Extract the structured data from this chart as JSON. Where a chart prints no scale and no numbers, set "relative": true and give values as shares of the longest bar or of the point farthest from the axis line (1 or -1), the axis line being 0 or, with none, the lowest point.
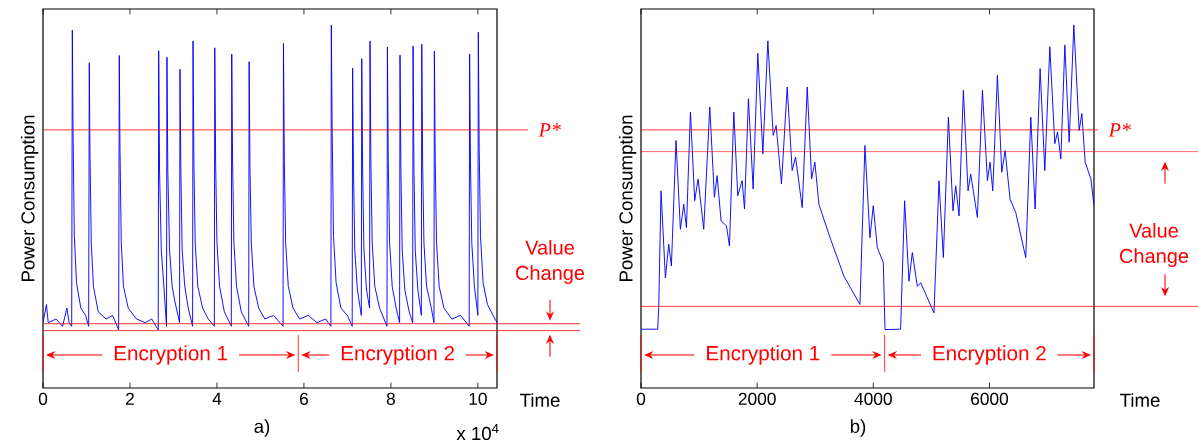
{
  "chart_data": [
    {
      "type": "line",
      "relative": true,
      "xlabel": "Time",
      "ylabel": "Power Consumption",
      "xlim": [
        0,
        10.44
      ],
      "xticks": [
        0,
        2,
        4,
        6,
        8,
        10
      ],
      "tick_labels": "x",
      "series": [
        {
          "color": "#0000ff",
          "x": [
            0,
            0.08,
            0.12,
            0.3,
            0.45,
            0.55,
            0.6,
            0.66,
            0.674,
            0.69,
            0.72,
            0.77,
            0.87,
            0.98,
            1.05,
            1.064,
            1.08,
            1.11,
            1.16,
            1.27,
            1.45,
            1.6,
            1.74,
            1.754,
            1.77,
            1.8,
            1.85,
            1.96,
            2.15,
            2.35,
            2.5,
            2.65,
            2.66,
            2.68,
            2.72,
            2.78,
            2.84,
            2.85,
            2.87,
            2.91,
            2.97,
            3.03,
            3.14,
            3.15,
            3.17,
            3.2,
            3.26,
            3.34,
            3.44,
            3.45,
            3.47,
            3.5,
            3.56,
            3.67,
            3.8,
            3.94,
            3.95,
            3.97,
            4.0,
            4.06,
            4.17,
            4.33,
            4.34,
            4.36,
            4.39,
            4.45,
            4.56,
            4.73,
            4.74,
            4.76,
            4.79,
            4.85,
            4.96,
            5.1,
            5.3,
            5.52,
            5.53,
            5.55,
            5.58,
            5.64,
            5.75,
            5.9,
            6.1,
            6.3,
            6.5,
            6.62,
            6.63,
            6.65,
            6.68,
            6.74,
            6.85,
            7.0,
            7.11,
            7.12,
            7.14,
            7.17,
            7.23,
            7.32,
            7.33,
            7.35,
            7.38,
            7.44,
            7.51,
            7.52,
            7.54,
            7.57,
            7.63,
            7.74,
            7.91,
            7.92,
            7.94,
            7.97,
            8.03,
            8.12,
            8.2,
            8.21,
            8.23,
            8.26,
            8.32,
            8.42,
            8.5,
            8.51,
            8.53,
            8.56,
            8.62,
            8.7,
            8.71,
            8.73,
            8.76,
            8.82,
            8.93,
            8.99,
            9.0,
            9.02,
            9.05,
            9.11,
            9.22,
            9.4,
            9.6,
            9.8,
            9.81,
            9.83,
            9.86,
            9.92,
            10.0,
            10.01,
            10.03,
            10.06,
            10.12,
            10.22,
            10.35,
            10.44
          ],
          "values": [
            0.18,
            0.23,
            0.18,
            0.19,
            0.17,
            0.22,
            0.18,
            0.17,
            0.986,
            0.72,
            0.42,
            0.29,
            0.22,
            0.2,
            0.17,
            0.896,
            0.65,
            0.4,
            0.28,
            0.21,
            0.19,
            0.2,
            0.16,
            0.916,
            0.66,
            0.4,
            0.28,
            0.22,
            0.19,
            0.18,
            0.19,
            0.16,
            0.929,
            0.6,
            0.38,
            0.28,
            0.17,
            0.911,
            0.6,
            0.38,
            0.28,
            0.24,
            0.18,
            0.878,
            0.6,
            0.38,
            0.28,
            0.22,
            0.17,
            0.956,
            0.62,
            0.4,
            0.28,
            0.22,
            0.19,
            0.17,
            0.937,
            0.62,
            0.4,
            0.28,
            0.21,
            0.17,
            0.92,
            0.62,
            0.4,
            0.28,
            0.21,
            0.17,
            0.899,
            0.6,
            0.4,
            0.28,
            0.22,
            0.19,
            0.2,
            0.17,
            0.949,
            0.62,
            0.4,
            0.28,
            0.22,
            0.19,
            0.2,
            0.18,
            0.19,
            0.17,
            1.0,
            0.7,
            0.42,
            0.29,
            0.22,
            0.2,
            0.17,
            0.881,
            0.6,
            0.38,
            0.27,
            0.2,
            0.907,
            0.6,
            0.38,
            0.27,
            0.22,
            0.956,
            0.62,
            0.4,
            0.28,
            0.22,
            0.17,
            0.939,
            0.62,
            0.4,
            0.28,
            0.22,
            0.18,
            0.917,
            0.6,
            0.38,
            0.27,
            0.21,
            0.18,
            0.942,
            0.6,
            0.38,
            0.27,
            0.2,
            0.947,
            0.62,
            0.4,
            0.28,
            0.22,
            0.18,
            0.928,
            0.62,
            0.4,
            0.28,
            0.22,
            0.19,
            0.2,
            0.17,
            0.92,
            0.62,
            0.4,
            0.28,
            0.2,
            0.98,
            0.66,
            0.42,
            0.29,
            0.23,
            0.2,
            0.18
          ]
        }
      ],
      "ref_lines": [
        {
          "axis": "y",
          "value": 0.711,
          "label": "P*",
          "color": "#ff0000"
        },
        {
          "axis": "y",
          "value": 0.177,
          "color": "#ff0000"
        },
        {
          "axis": "y",
          "value": 0.158,
          "color": "#ff0000"
        },
        {
          "axis": "x",
          "value": 0,
          "color": "#ff0000"
        },
        {
          "axis": "x",
          "value": 5.87,
          "color": "#ff0000"
        },
        {
          "axis": "x",
          "value": 10.44,
          "color": "#ff0000"
        }
      ],
      "annotations": [
        "Encryption 1",
        "Encryption 2",
        "Value Change",
        "x 10$^{4}$",
        "a)"
      ]
    },
    {
      "type": "line",
      "relative": true,
      "xlabel": "Time",
      "ylabel": "Power Consumption",
      "xlim": [
        0,
        7800
      ],
      "xticks": [
        0,
        2000,
        4000,
        6000
      ],
      "tick_labels": "x",
      "series": [
        {
          "color": "#0000ff",
          "x": [
            0,
            287,
            305,
            345,
            420,
            477,
            523,
            603,
            678,
            736,
            782,
            851,
            925,
            983,
            1080,
            1184,
            1264,
            1310,
            1379,
            1471,
            1523,
            1598,
            1666,
            1741,
            1782,
            1850,
            1931,
            2011,
            2098,
            2184,
            2276,
            2327,
            2419,
            2517,
            2603,
            2661,
            2776,
            2862,
            2937,
            2994,
            3063,
            3264,
            3494,
            3770,
            3856,
            3942,
            3999,
            4069,
            4172,
            4201,
            4470,
            4539,
            4614,
            4672,
            4758,
            4815,
            5045,
            5131,
            5206,
            5293,
            5372,
            5419,
            5476,
            5551,
            5631,
            5677,
            5792,
            5879,
            5965,
            6010,
            6057,
            6137,
            6212,
            6269,
            6355,
            6453,
            6625,
            6712,
            6786,
            6872,
            6953,
            7039,
            7125,
            7172,
            7229,
            7298,
            7372,
            7453,
            7544,
            7591,
            7648,
            7746,
            7800
          ],
          "values": [
            0.162,
            0.162,
            0.221,
            0.543,
            0.303,
            0.396,
            0.336,
            0.682,
            0.437,
            0.506,
            0.442,
            0.76,
            0.516,
            0.576,
            0.437,
            0.774,
            0.525,
            0.585,
            0.46,
            0.447,
            0.391,
            0.76,
            0.53,
            0.571,
            0.493,
            0.797,
            0.548,
            0.922,
            0.645,
            0.956,
            0.696,
            0.723,
            0.562,
            0.829,
            0.599,
            0.636,
            0.497,
            0.829,
            0.576,
            0.622,
            0.506,
            0.41,
            0.308,
            0.23,
            0.668,
            0.414,
            0.502,
            0.387,
            0.345,
            0.161,
            0.162,
            0.516,
            0.294,
            0.373,
            0.28,
            0.29,
            0.207,
            0.571,
            0.359,
            0.746,
            0.488,
            0.557,
            0.474,
            0.82,
            0.543,
            0.589,
            0.47,
            0.82,
            0.571,
            0.622,
            0.543,
            0.862,
            0.594,
            0.654,
            0.52,
            0.483,
            0.359,
            0.746,
            0.493,
            0.88,
            0.599,
            0.94,
            0.673,
            0.705,
            0.631,
            0.945,
            0.677,
            1.0,
            0.709,
            0.756,
            0.622,
            0.576,
            0.502
          ]
        }
      ],
      "ref_lines": [
        {
          "axis": "y",
          "value": 0.711,
          "label": "P*",
          "color": "#ff0000"
        },
        {
          "axis": "y",
          "value": 0.651,
          "color": "#ff0000"
        },
        {
          "axis": "y",
          "value": 0.225,
          "color": "#ff0000"
        },
        {
          "axis": "x",
          "value": 0,
          "color": "#ff0000"
        },
        {
          "axis": "x",
          "value": 4195,
          "color": "#ff0000"
        },
        {
          "axis": "x",
          "value": 7800,
          "color": "#ff0000"
        }
      ],
      "annotations": [
        "Encryption 1",
        "Encryption 2",
        "Value Change",
        "b)"
      ]
    }
  ]
}
